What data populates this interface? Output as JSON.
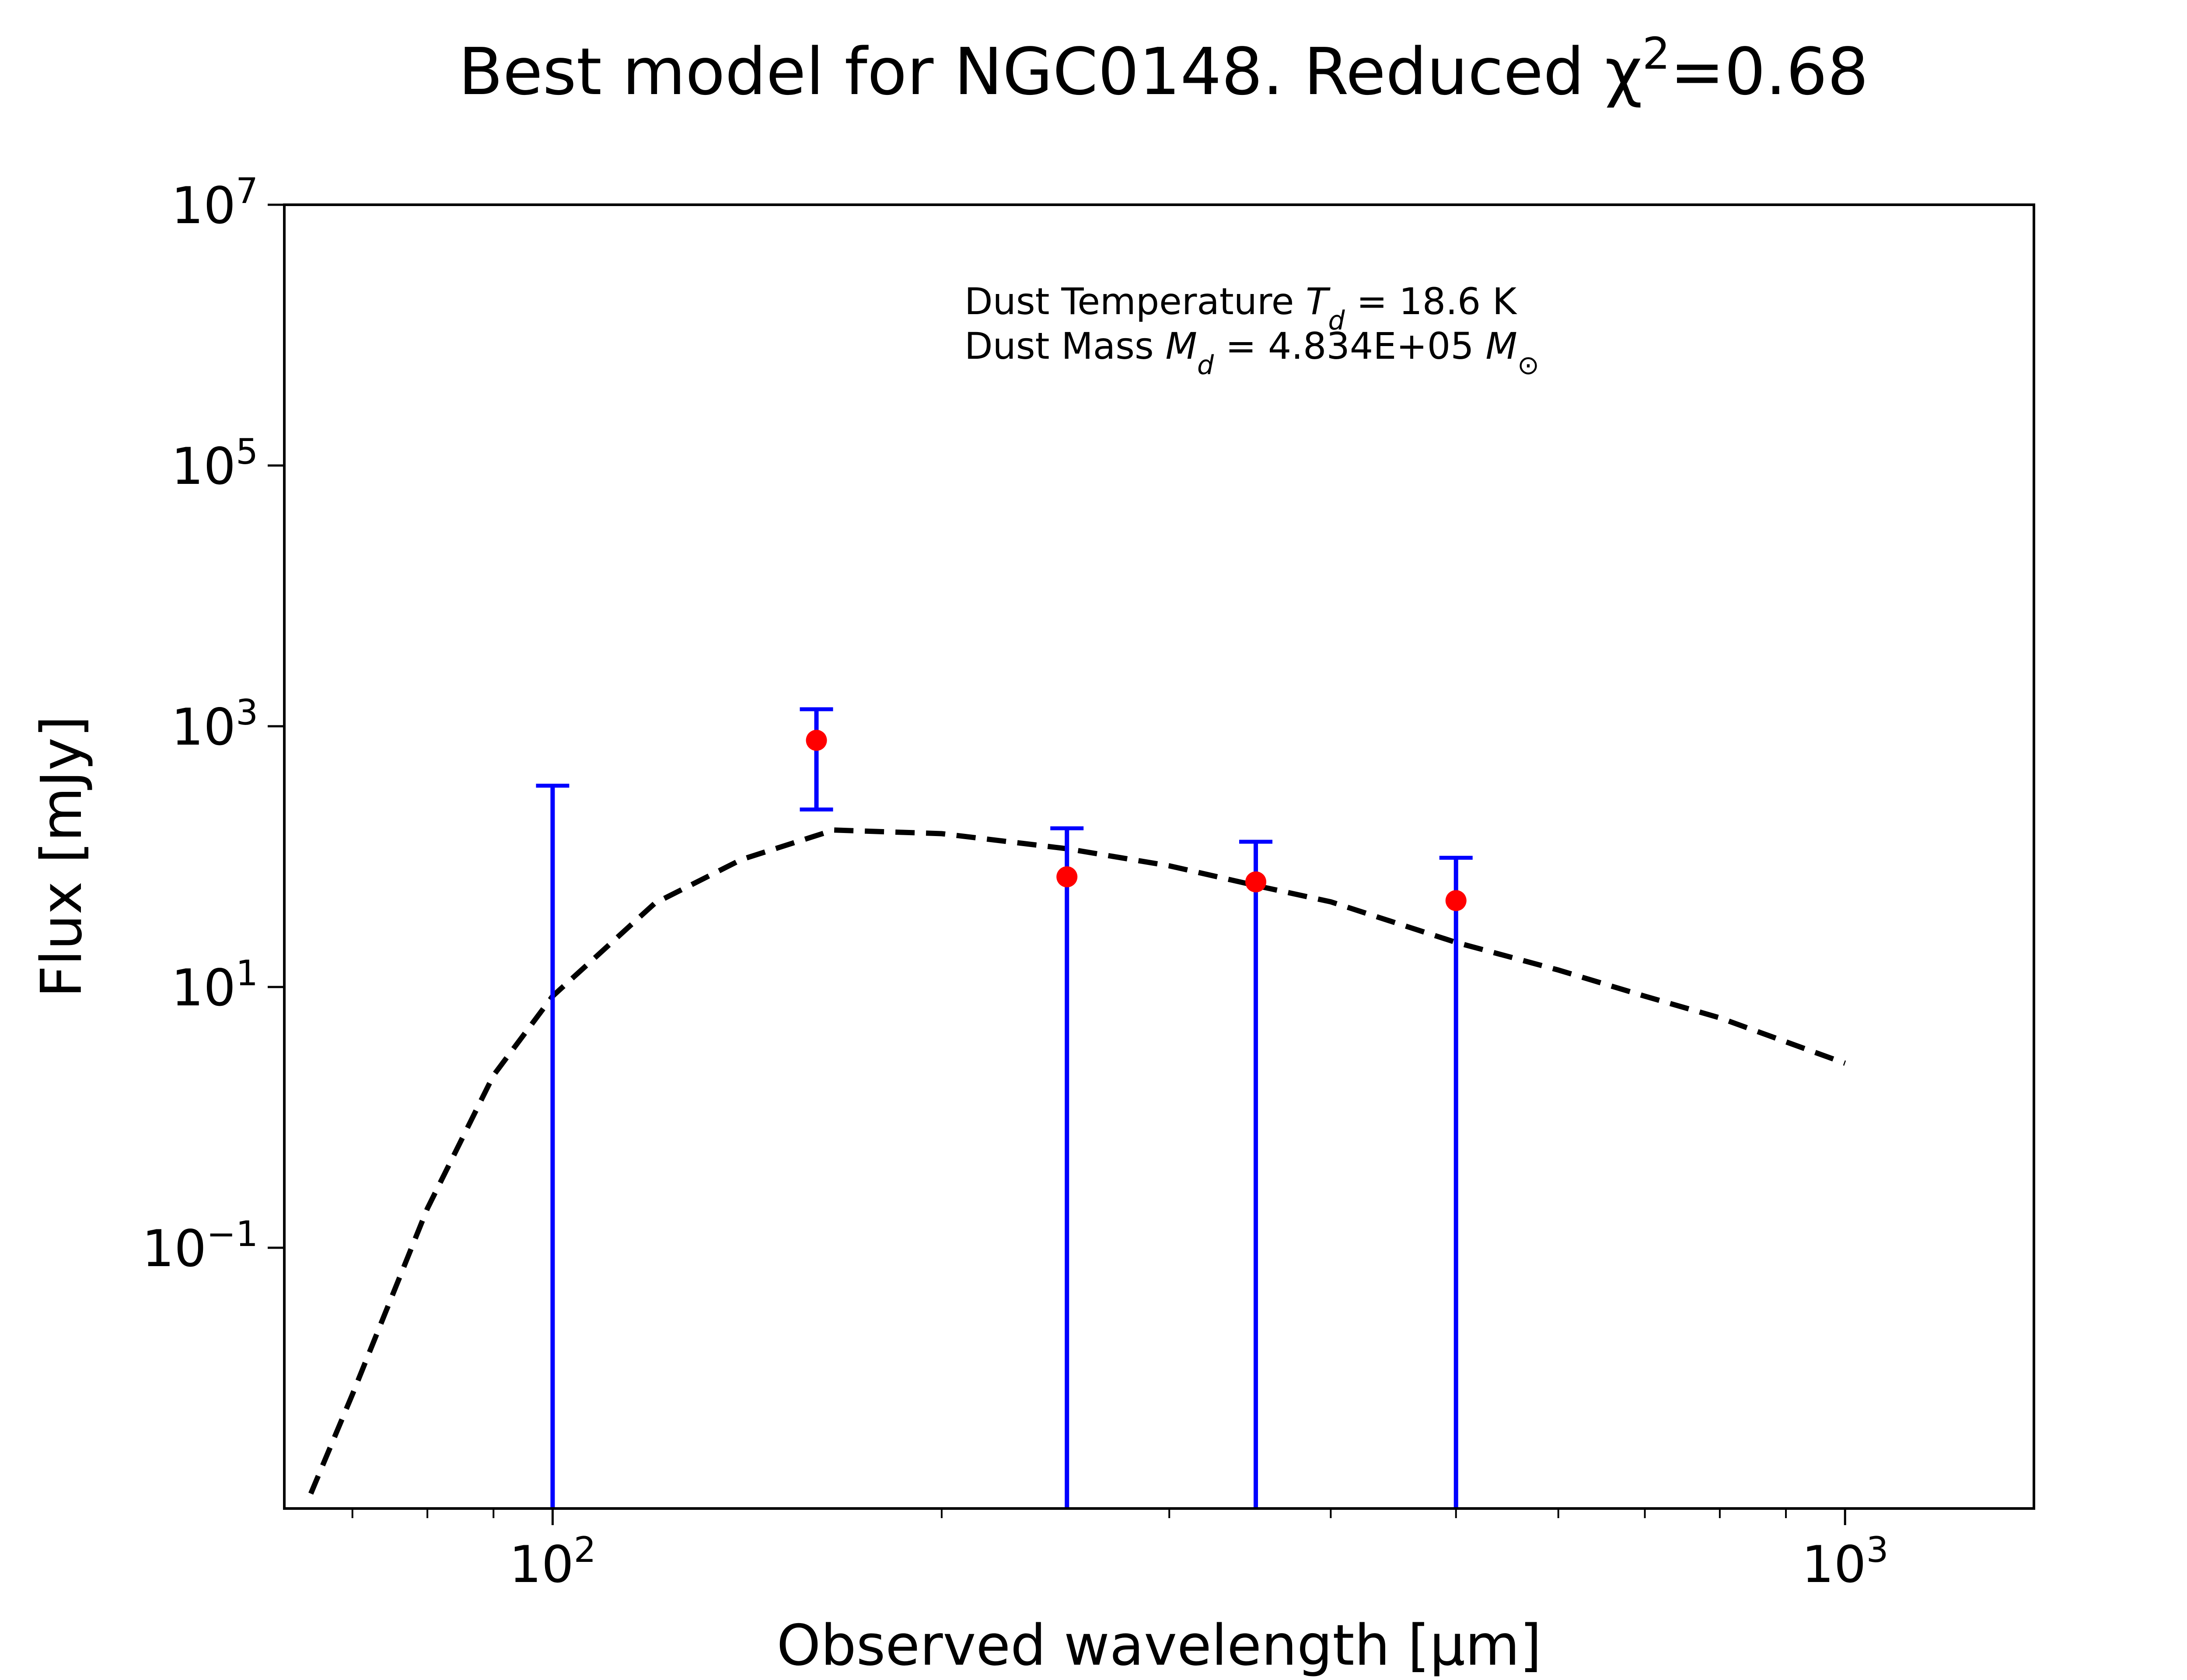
{
  "chart_data": {
    "type": "scatter",
    "title": "Best model for NGC0148. Reduced χ²=0.68",
    "xlabel": "Observed wavelength [μm]",
    "ylabel": "Flux [mJy]",
    "x_scale": "log",
    "y_scale": "log",
    "xlim": [
      62,
      1400
    ],
    "ylim": [
      0.001,
      10000000
    ],
    "x_ticks": [
      {
        "value": 100,
        "label": "10",
        "exp": "2"
      },
      {
        "value": 1000,
        "label": "10",
        "exp": "3"
      }
    ],
    "y_ticks": [
      {
        "value": 0.1,
        "label": "10",
        "exp": "−1"
      },
      {
        "value": 10,
        "label": "10",
        "exp": "1"
      },
      {
        "value": 1000,
        "label": "10",
        "exp": "3"
      },
      {
        "value": 100000,
        "label": "10",
        "exp": "5"
      },
      {
        "value": 10000000,
        "label": "10",
        "exp": "7"
      }
    ],
    "grid": false,
    "annotations": [
      {
        "prefix": "Dust Temperature ",
        "sym": "T",
        "sub": "d",
        "suffix": " = 18.6 K"
      },
      {
        "prefix": "Dust Mass ",
        "sym": "M",
        "sub": "d",
        "suffix": " = 4.834E+05 ",
        "sym2": "M",
        "sub2": "⊙"
      }
    ],
    "observations": [
      {
        "x": 100,
        "y": null,
        "err_low": 0.001,
        "err_high": 350
      },
      {
        "x": 160,
        "y": 780,
        "err_low": 230,
        "err_high": 1350
      },
      {
        "x": 250,
        "y": 70,
        "err_low": 0.001,
        "err_high": 165
      },
      {
        "x": 350,
        "y": 64,
        "err_low": 0.001,
        "err_high": 130
      },
      {
        "x": 500,
        "y": 46,
        "err_low": 0.001,
        "err_high": 98
      }
    ],
    "model": {
      "x": [
        65,
        70,
        80,
        90,
        100,
        120,
        140,
        165,
        200,
        250,
        300,
        350,
        400,
        500,
        600,
        700,
        800,
        1000
      ],
      "y": [
        0.0013,
        0.0075,
        0.2,
        2.1,
        8.5,
        44,
        95,
        160,
        150,
        115,
        85,
        60,
        45,
        22,
        13.5,
        8.5,
        5.8,
        2.6
      ],
      "style": "dashed",
      "color": "#000000"
    },
    "colors": {
      "points": "#ff0000",
      "errorbars": "#0000ff",
      "model": "#000000"
    }
  }
}
